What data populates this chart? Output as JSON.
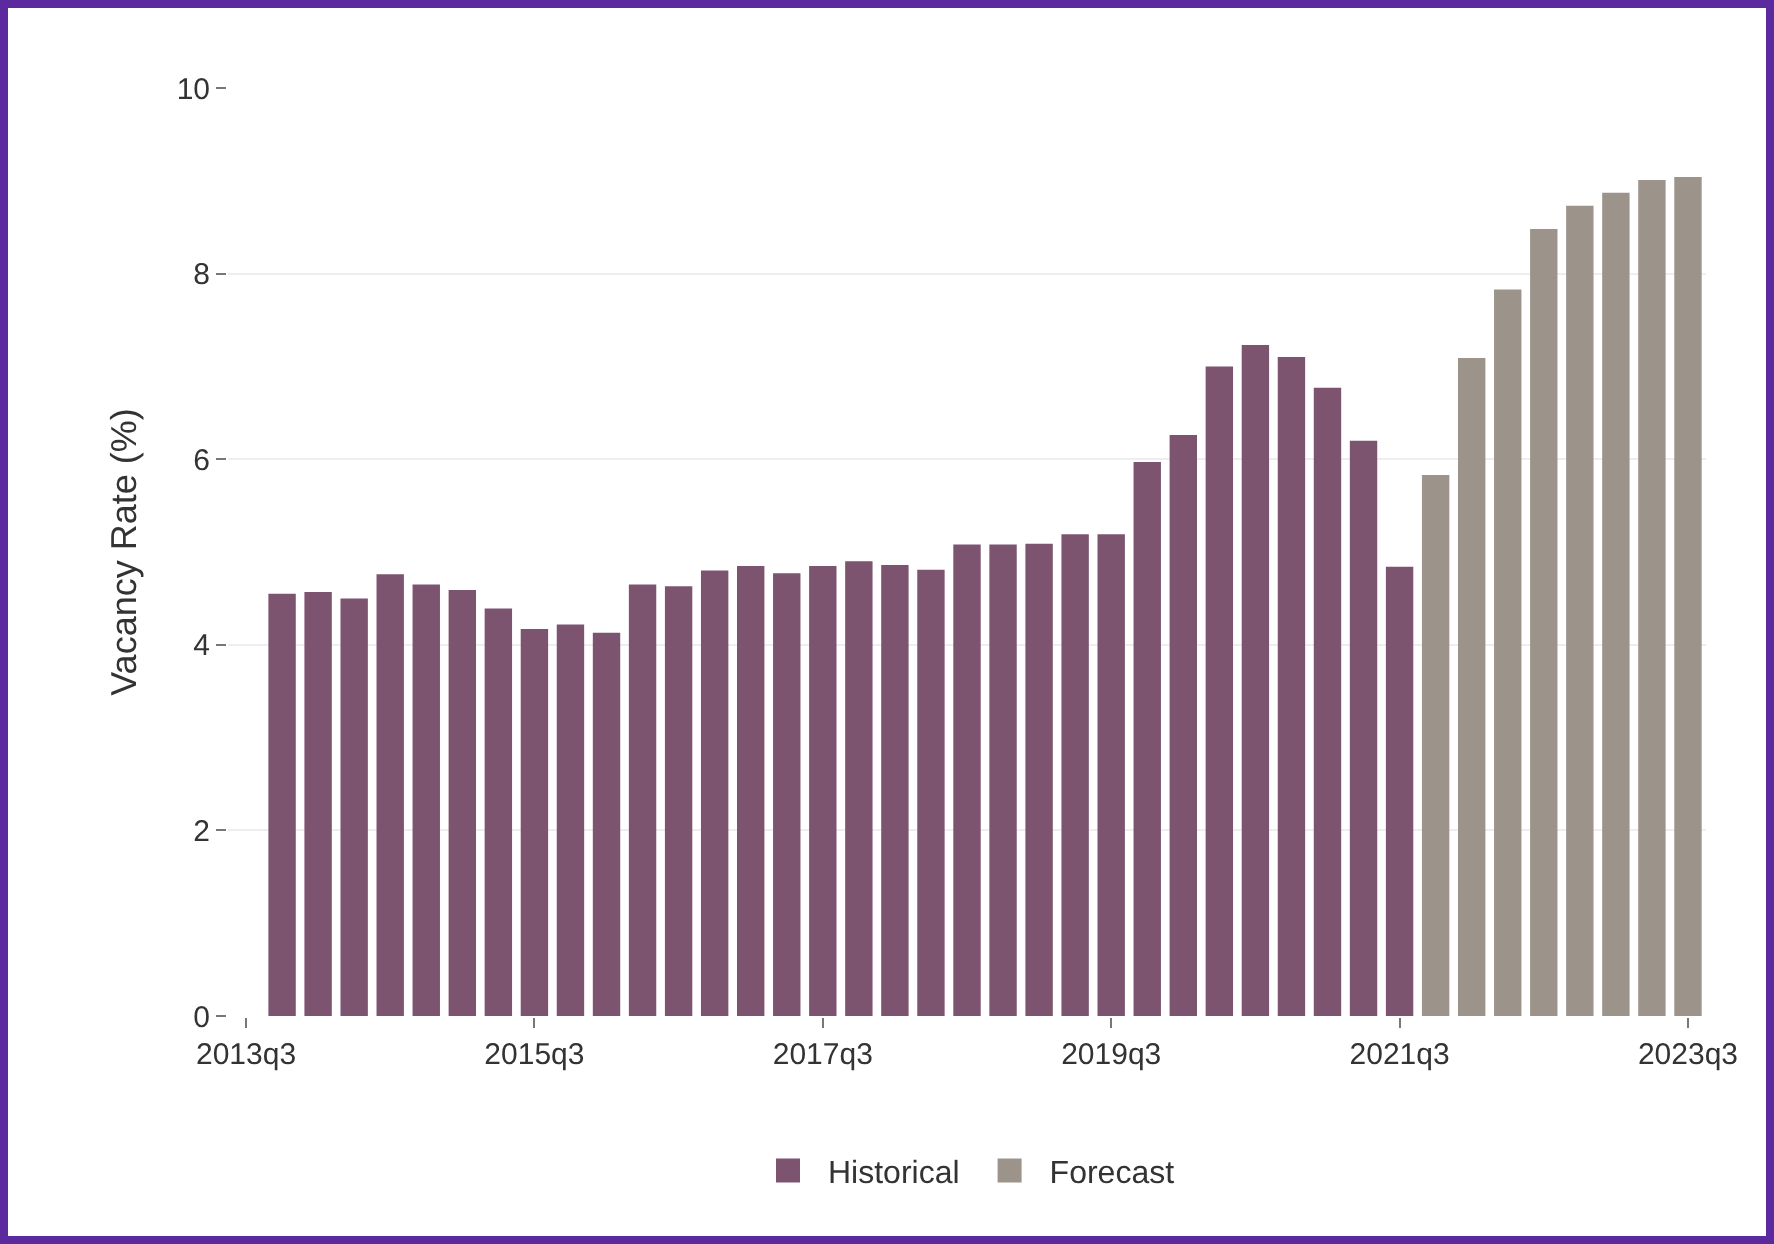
{
  "chart_data": {
    "type": "bar",
    "ylabel": "Vacancy Rate (%)",
    "categories": [
      "2013q3",
      null,
      null,
      null,
      null,
      null,
      null,
      null,
      "2015q3",
      null,
      null,
      null,
      null,
      null,
      null,
      null,
      "2017q3",
      null,
      null,
      null,
      null,
      null,
      null,
      null,
      "2019q3",
      null,
      null,
      null,
      null,
      null,
      null,
      null,
      "2021q3",
      null,
      null,
      null,
      null,
      null,
      null,
      null,
      "2023q3"
    ],
    "series": [
      {
        "name": "Historical",
        "color": "#7d5470",
        "values": [
          null,
          4.55,
          4.57,
          4.5,
          4.76,
          4.65,
          4.59,
          4.39,
          4.17,
          4.22,
          4.13,
          4.65,
          4.63,
          4.8,
          4.85,
          4.77,
          4.85,
          4.9,
          4.86,
          4.81,
          5.08,
          5.08,
          5.09,
          5.19,
          5.19,
          5.97,
          6.26,
          7.0,
          7.23,
          7.1,
          6.77,
          6.2,
          4.84,
          null,
          null,
          null,
          null,
          null,
          null,
          null,
          null
        ]
      },
      {
        "name": "Forecast",
        "color": "#9c948a",
        "values": [
          null,
          null,
          null,
          null,
          null,
          null,
          null,
          null,
          null,
          null,
          null,
          null,
          null,
          null,
          null,
          null,
          null,
          null,
          null,
          null,
          null,
          null,
          null,
          null,
          null,
          null,
          null,
          null,
          null,
          null,
          null,
          null,
          null,
          5.83,
          7.09,
          7.83,
          8.48,
          8.73,
          8.87,
          9.01,
          9.04
        ]
      }
    ],
    "ylim": [
      0,
      10
    ],
    "yticks": [
      0,
      2,
      4,
      6,
      8,
      10
    ],
    "grid": "y",
    "legend": "bottom"
  }
}
